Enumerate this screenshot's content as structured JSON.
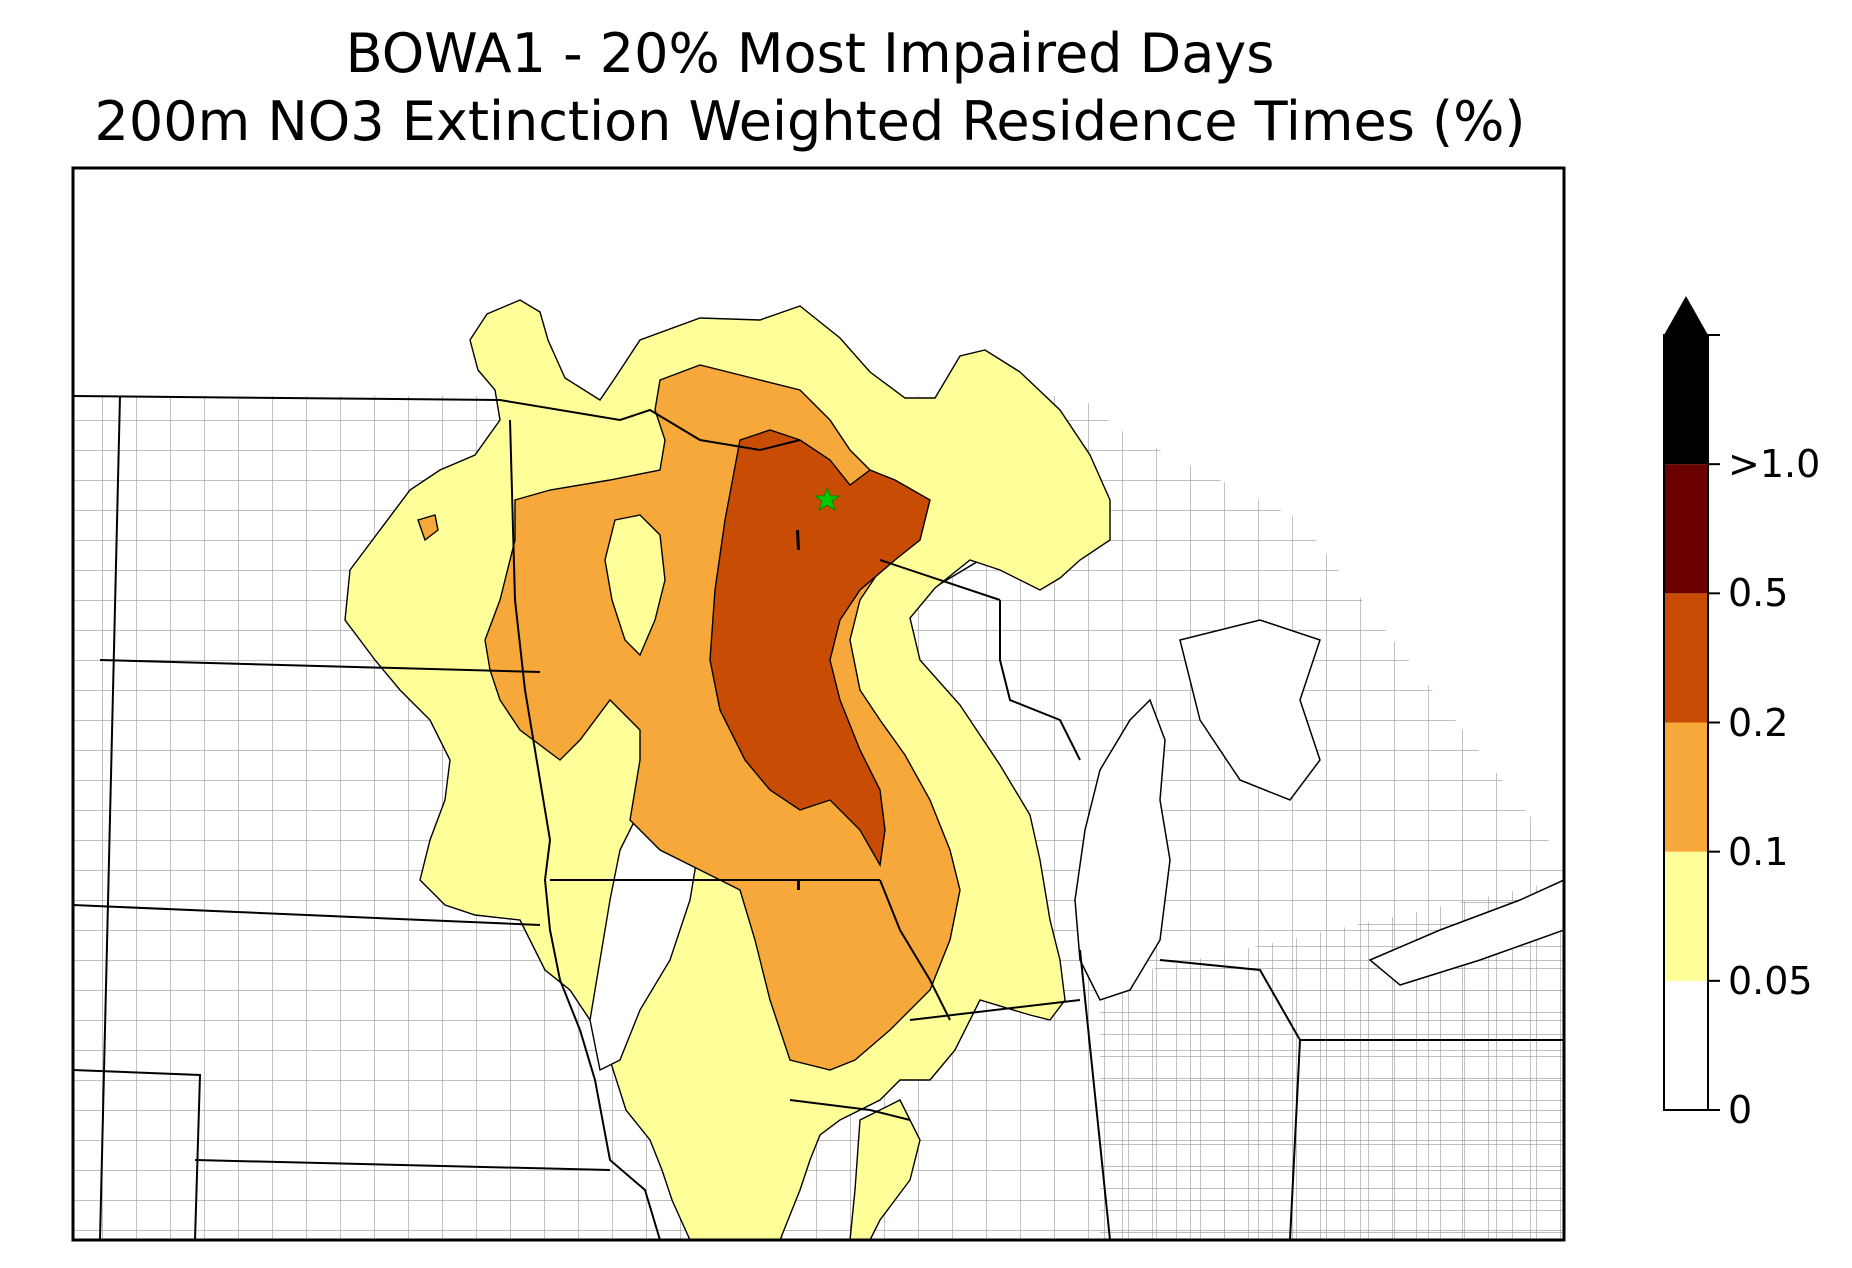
{
  "title": {
    "line1": "BOWA1 - 20% Most Impaired Days",
    "line2": "200m NO3 Extinction Weighted Residence Times (%)"
  },
  "legend": {
    "bins": [
      {
        "label": "0",
        "color": "#ffffff"
      },
      {
        "label": "0.05",
        "color": "#ffff99"
      },
      {
        "label": "0.1",
        "color": "#f7a83a"
      },
      {
        "label": "0.2",
        "color": "#c84c04"
      },
      {
        "label": "0.5",
        "color": "#6b0000"
      },
      {
        "label": ">1.0",
        "color": "#000000"
      }
    ],
    "extend": "max"
  },
  "map": {
    "site_marker": {
      "symbol": "star",
      "color": "#00cc00"
    },
    "contour_colors": {
      "level_0_05": "#ffff99",
      "level_0_1": "#f7a83a",
      "level_0_2": "#c84c04"
    },
    "boundary_colors": {
      "state": "#000000",
      "county": "#9a9a9a"
    }
  }
}
